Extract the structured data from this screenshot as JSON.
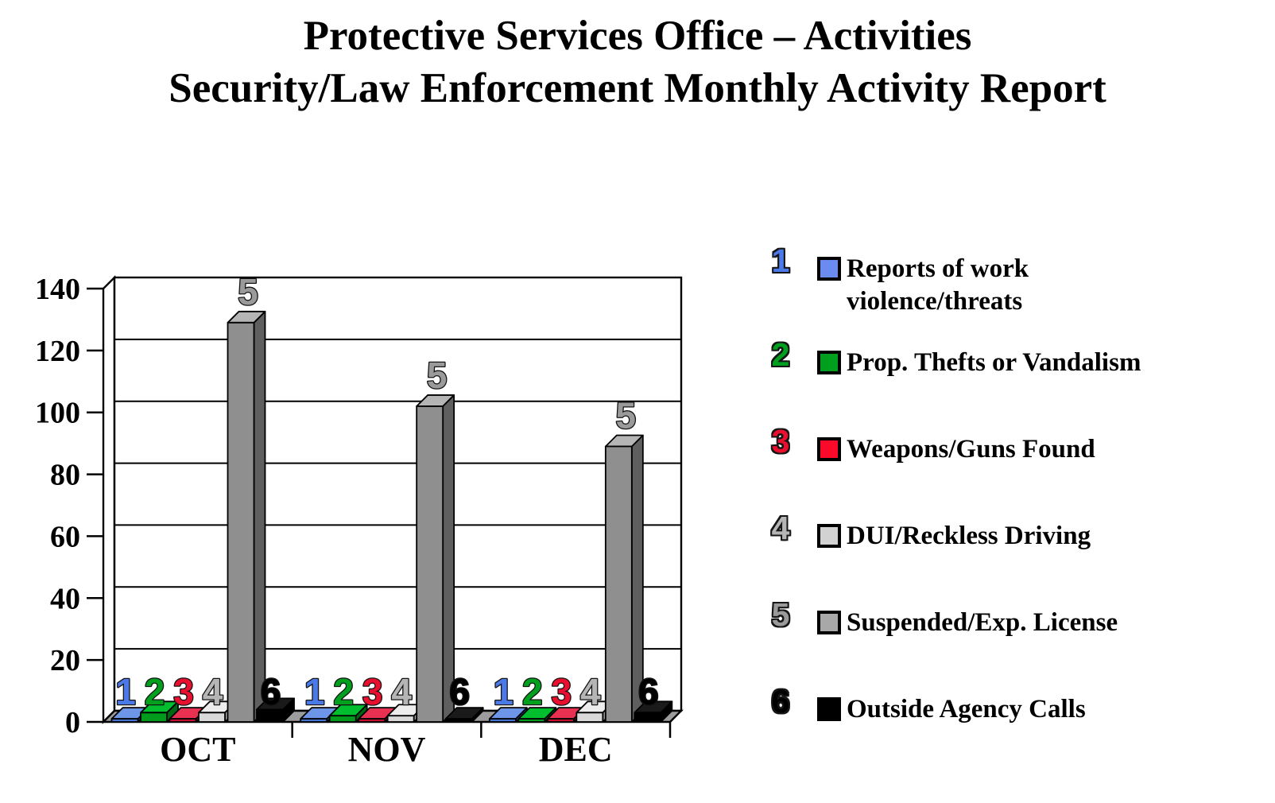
{
  "title": {
    "line1": "Protective Services Office – Activities",
    "line2": "Security/Law Enforcement Monthly Activity Report"
  },
  "chart_data": {
    "type": "bar",
    "style": "3d-column",
    "title": "Protective Services Office – Activities / Security/Law Enforcement Monthly Activity Report",
    "categories": [
      "OCT",
      "NOV",
      "DEC"
    ],
    "series": [
      {
        "number": "1",
        "name": "Reports of work violence/threats",
        "values": [
          1,
          1,
          1
        ],
        "color": "#4472D0",
        "color_top": "#6E96E8",
        "color_side": "#2C4F9E",
        "label_color": "#4C79E8",
        "legend_color": "#6A8CF0"
      },
      {
        "number": "2",
        "name": "Prop. Thefts or Vandalism",
        "values": [
          3,
          2,
          1
        ],
        "color": "#009B1C",
        "color_top": "#00BE2E",
        "color_side": "#006812",
        "label_color": "#00A01E",
        "legend_color": "#00A01E"
      },
      {
        "number": "3",
        "name": "Weapons/Guns Found",
        "values": [
          1,
          1,
          1
        ],
        "color": "#C8102E",
        "color_top": "#E83050",
        "color_side": "#8C0A20",
        "label_color": "#E8102E",
        "legend_color": "#FA0A28"
      },
      {
        "number": "4",
        "name": "DUI/Reckless Driving",
        "values": [
          3,
          2,
          3
        ],
        "color": "#D9D9D9",
        "color_top": "#EDEDED",
        "color_side": "#9E9E9E",
        "label_color": "#B5B5B5",
        "legend_color": "#D2D2D2"
      },
      {
        "number": "5",
        "name": "Suspended/Exp. License",
        "values": [
          129,
          102,
          89
        ],
        "color": "#8F8F8F",
        "color_top": "#B5B5B5",
        "color_side": "#5F5F5F",
        "label_color": "#9A9A9A",
        "legend_color": "#A8A8A8"
      },
      {
        "number": "6",
        "name": "Outside Agency Calls",
        "values": [
          4,
          1,
          3
        ],
        "color": "#000000",
        "color_top": "#1A1A1A",
        "color_side": "#000000",
        "label_color": "#000000",
        "legend_color": "#000000"
      }
    ],
    "yaxis": {
      "min": 0,
      "max": 140,
      "step": 20,
      "tick_labels": [
        "0",
        "20",
        "40",
        "60",
        "80",
        "100",
        "120",
        "140"
      ]
    },
    "grid": true,
    "legend_position": "right",
    "bar_labels": "series number shown above each bar",
    "wall_color": "#ffffff",
    "floor_color": "#9C9C9C"
  }
}
